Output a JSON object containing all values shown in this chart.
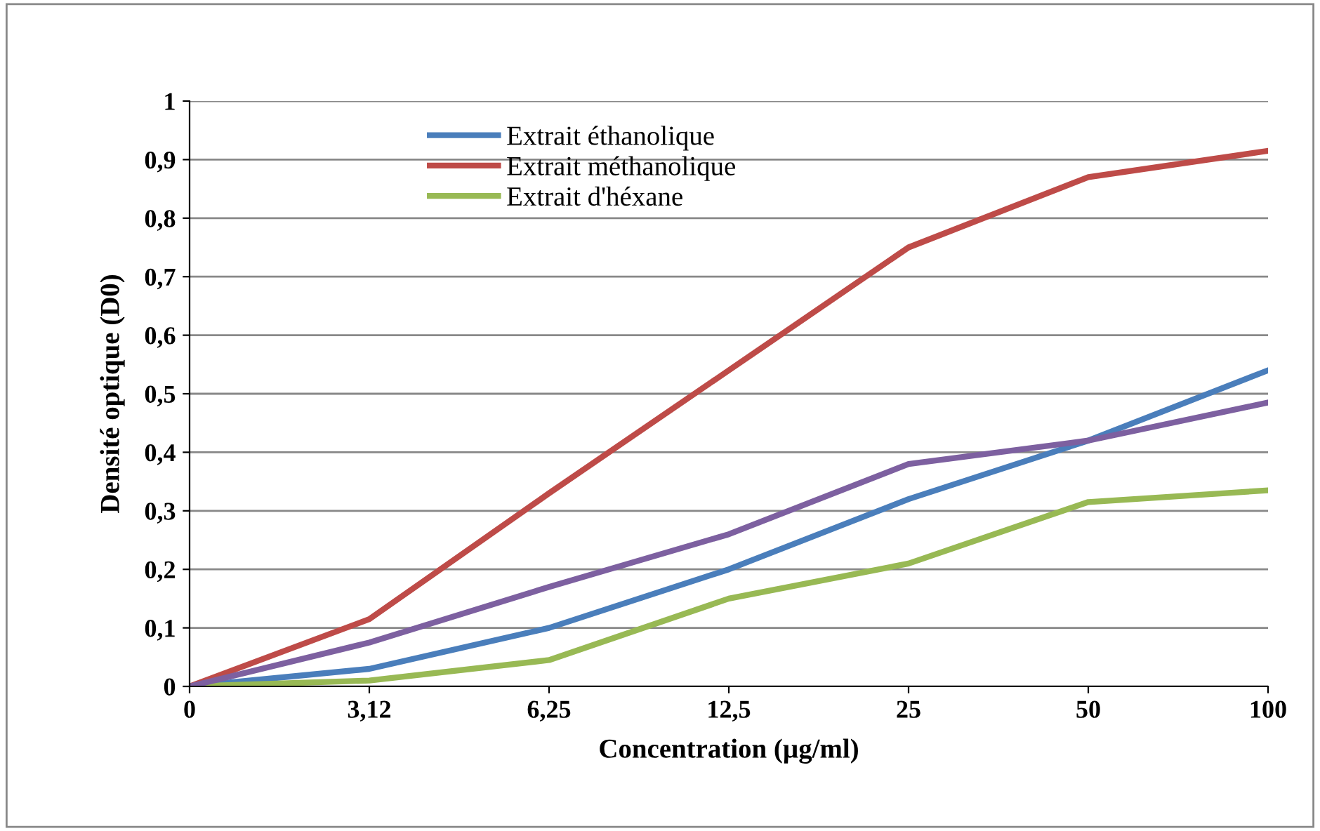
{
  "chart_data": {
    "type": "line",
    "xlabel": "Concentration (µg/ml)",
    "ylabel": "Densité optique (D0)",
    "categories": [
      "0",
      "3,12",
      "6,25",
      "12,5",
      "25",
      "50",
      "100"
    ],
    "series": [
      {
        "name": "Extrait éthanolique",
        "color": "#4a7ebb",
        "values": [
          0,
          0.03,
          0.1,
          0.2,
          0.32,
          0.42,
          0.54
        ]
      },
      {
        "name": "Extrait méthanolique",
        "color": "#be4b48",
        "values": [
          0,
          0.115,
          0.33,
          0.54,
          0.75,
          0.87,
          0.915
        ]
      },
      {
        "name": "Extrait d'héxane",
        "color": "#98b954",
        "values": [
          0,
          0.01,
          0.045,
          0.15,
          0.21,
          0.315,
          0.335
        ]
      },
      {
        "color": "#7d60a0",
        "values": [
          0,
          0.075,
          0.17,
          0.26,
          0.38,
          0.42,
          0.485
        ]
      }
    ],
    "ylim": [
      0,
      1
    ],
    "yticks": [
      {
        "value": 0,
        "label": "0"
      },
      {
        "value": 0.1,
        "label": "0,1"
      },
      {
        "value": 0.2,
        "label": "0,2"
      },
      {
        "value": 0.3,
        "label": "0,3"
      },
      {
        "value": 0.4,
        "label": "0,4"
      },
      {
        "value": 0.5,
        "label": "0,5"
      },
      {
        "value": 0.6,
        "label": "0,6"
      },
      {
        "value": 0.7,
        "label": "0,7"
      },
      {
        "value": 0.8,
        "label": "0,8"
      },
      {
        "value": 0.9,
        "label": "0,9"
      },
      {
        "value": 1,
        "label": "1"
      }
    ],
    "grid": "y",
    "legend": "top left",
    "marker": "none",
    "line_style": "solid"
  }
}
